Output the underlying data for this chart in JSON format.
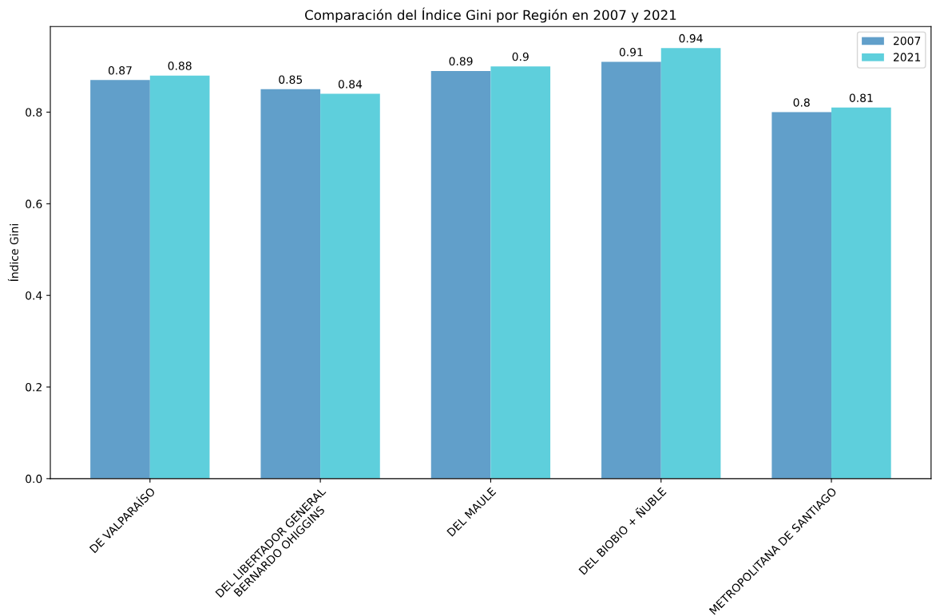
{
  "chart_data": {
    "type": "bar",
    "title": "Comparación del Índice Gini por Región en 2007 y 2021",
    "ylabel": "Índice Gini",
    "categories": [
      "DE VALPARAÍSO",
      "DEL LIBERTADOR GENERAL\nBERNARDO OHIGGINS",
      "DEL MAULE",
      "DEL BIOBIO + ÑUBLE",
      "METROPOLITANA DE SANTIAGO"
    ],
    "series": [
      {
        "name": "2007",
        "color": "#619fca",
        "values": [
          0.87,
          0.85,
          0.89,
          0.91,
          0.8
        ]
      },
      {
        "name": "2021",
        "color": "#5ecfdc",
        "values": [
          0.88,
          0.84,
          0.9,
          0.94,
          0.81
        ]
      }
    ],
    "ylim": [
      0,
      0.987
    ],
    "yticks": [
      {
        "value": 0,
        "label": "0.0"
      },
      0.2,
      0.4,
      0.6,
      0.8
    ],
    "data_labels": true,
    "legend": "top right",
    "grid": false
  }
}
